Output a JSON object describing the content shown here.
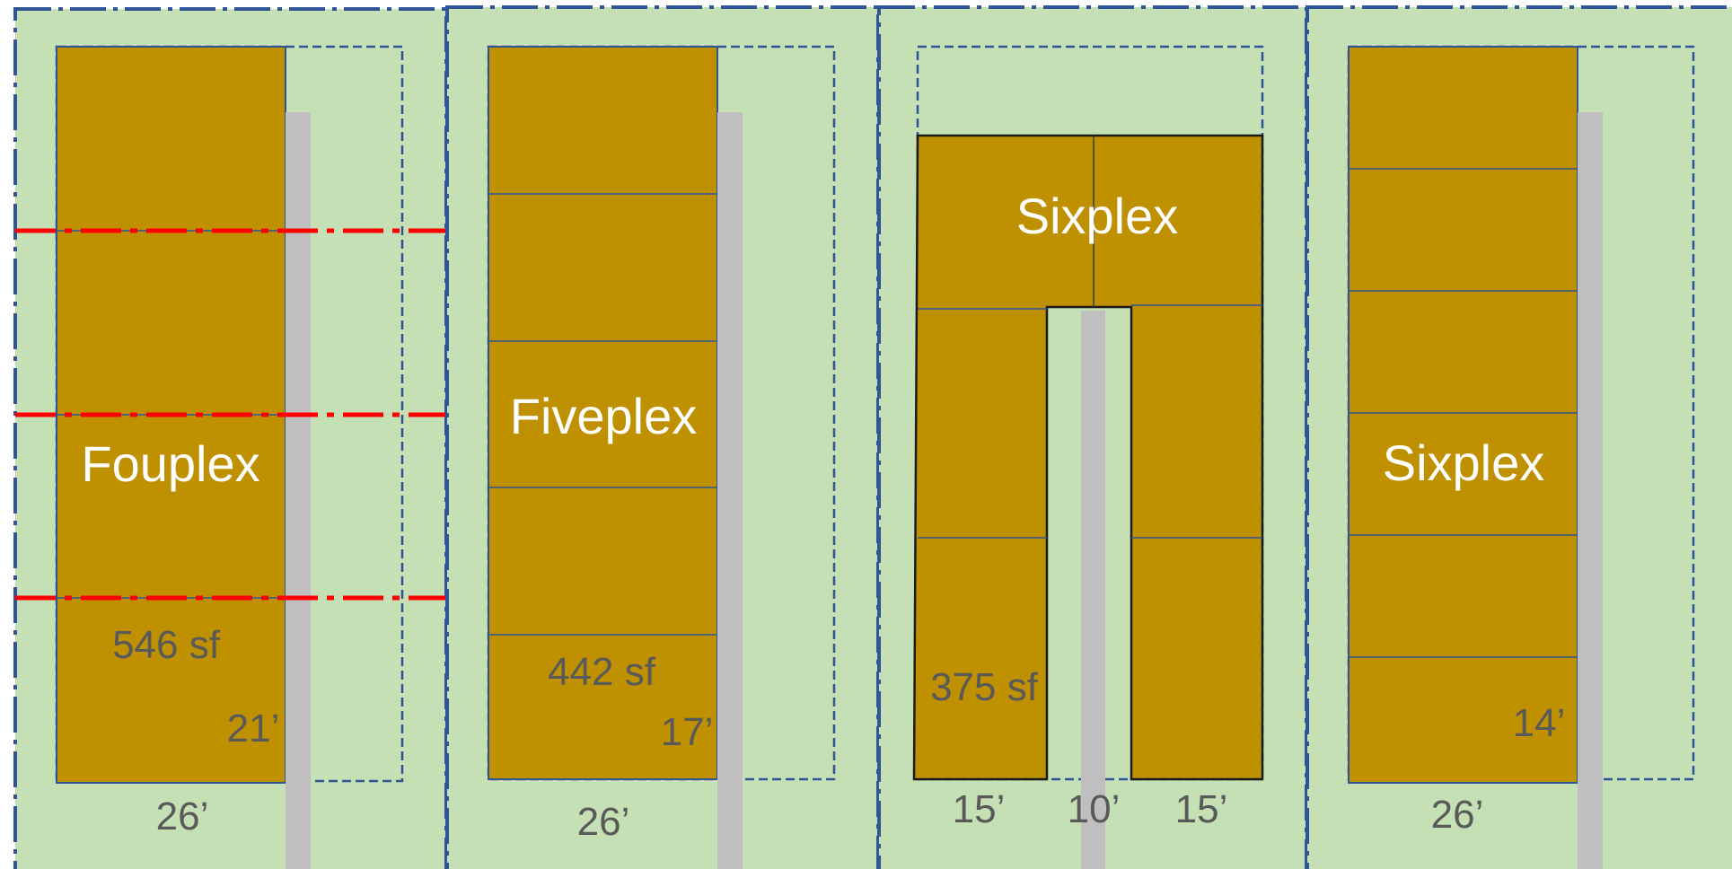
{
  "lots": [
    {
      "name": "fourplex",
      "type_label": "Fouplex",
      "unit_area": "546 sf",
      "width_dim": "26’",
      "walk_dim": "21’"
    },
    {
      "name": "fiveplex",
      "type_label": "Fiveplex",
      "unit_area": "442 sf",
      "width_dim": "26’",
      "walk_dim": "17’"
    },
    {
      "name": "sixplex-courtyard",
      "type_label": "Sixplex",
      "unit_area": "375 sf",
      "wing_left_dim": "15’",
      "court_dim": "10’",
      "wing_right_dim": "15’"
    },
    {
      "name": "sixplex-row",
      "type_label": "Sixplex",
      "width_dim": "26’",
      "walk_dim": "14’"
    }
  ],
  "colors": {
    "lot_fill": "#c5e0b4",
    "building_fill": "#bf9000",
    "lot_border": "#2f5597",
    "walkway": "#bfbfbf",
    "subdivision_line": "#ff0000",
    "dimension_text": "#595959",
    "type_text": "#ffffff"
  }
}
